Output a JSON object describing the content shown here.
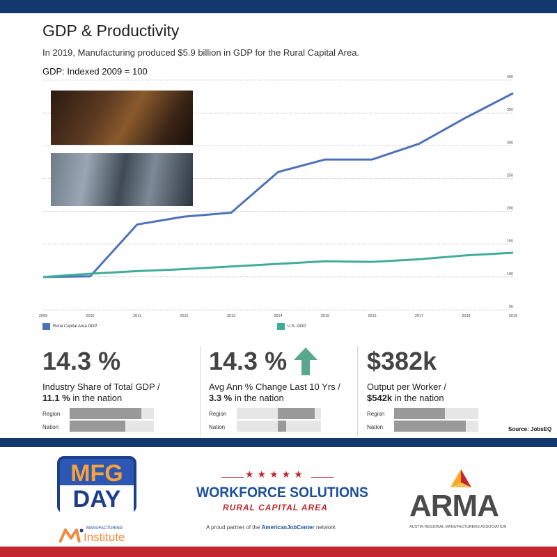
{
  "header": {
    "title": "GDP & Productivity",
    "subtitle": "In 2019, Manufacturing produced $5.9 billion in GDP for the Rural Capital Area.",
    "index_label": "GDP: Indexed 2009 = 100"
  },
  "chart_data": {
    "type": "line",
    "x": [
      "2009",
      "2010",
      "2011",
      "2012",
      "2013",
      "2014",
      "2015",
      "2016",
      "2017",
      "2018",
      "2019"
    ],
    "y_ticks": [
      "50",
      "100",
      "150",
      "200",
      "250",
      "300",
      "350",
      "400"
    ],
    "ylim": [
      50,
      400
    ],
    "grid": true,
    "legend_position": "bottom",
    "series": [
      {
        "name": "Rural Capital Area GDP",
        "color": "#4e72b8",
        "values": [
          100,
          101,
          180,
          192,
          198,
          260,
          279,
          279,
          303,
          343,
          380
        ]
      },
      {
        "name": "U.S. GDP",
        "color": "#3fae98",
        "values": [
          100,
          105,
          109,
          112,
          116,
          120,
          124,
          123,
          127,
          133,
          137
        ]
      }
    ]
  },
  "kpis": [
    {
      "value": "14.3 %",
      "line1": "Industry Share of Total GDP /",
      "line2_bold": "11.1 %",
      "line2_rest": " in the nation",
      "region_label": "Region",
      "nation_label": "Nation",
      "region_fraction": 0.85,
      "nation_fraction": 0.66
    },
    {
      "value": "14.3 %",
      "line1": "Avg Ann % Change Last 10 Yrs /",
      "line2_bold": "3.3 %",
      "line2_rest": " in the nation",
      "region_label": "Region",
      "nation_label": "Nation",
      "region_value": 14.3,
      "nation_value": 3.3,
      "arrow": "up-arrow-icon",
      "arrow_color": "#5aa88c"
    },
    {
      "value": "$382k",
      "line1": "Output per Worker /",
      "line2_bold": "$542k",
      "line2_rest": " in the nation",
      "region_label": "Region",
      "nation_label": "Nation",
      "region_fraction": 0.6,
      "nation_fraction": 0.85
    }
  ],
  "source": "Source: JobsEQ",
  "logos": {
    "mfg_top": "MFG",
    "mfg_bottom": "DAY",
    "mi_small": "MANUFACTURING",
    "mi_big": "Institute",
    "ws_stars": "★★★★★",
    "ws_title": "WORKFORCE SOLUTIONS",
    "ws_sub": "RURAL CAPITAL AREA",
    "ws_partner_pre": "A proud partner of the ",
    "ws_partner_brand": "AmericanJobCenter",
    "ws_partner_post": " network",
    "arma": "ARMA",
    "arma_sub": "AUSTIN REGIONAL MANUFACTURERS ASSOCIATION"
  },
  "colors": {
    "navy": "#13386e",
    "red": "#c1272d",
    "bar_fill": "#999999",
    "bar_track": "#e6e6e6"
  }
}
